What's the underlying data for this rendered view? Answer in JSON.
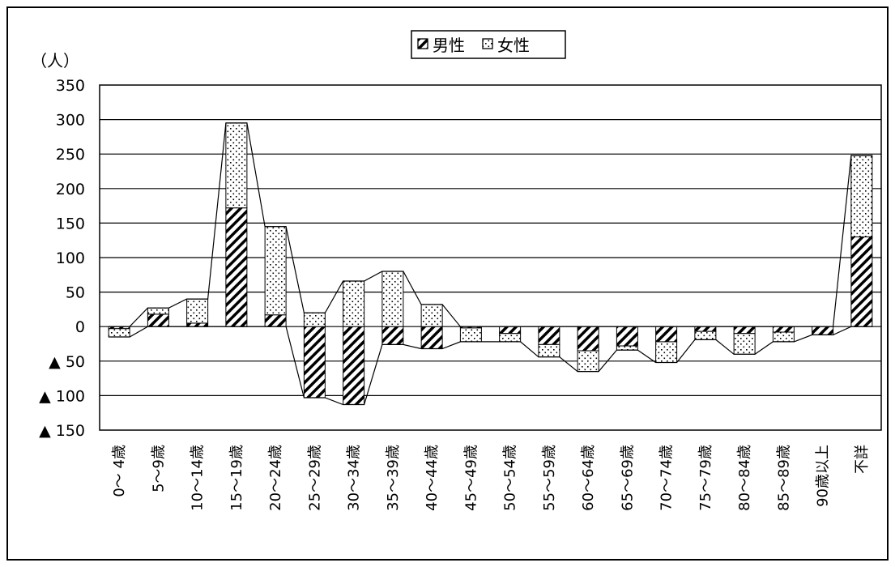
{
  "chart_data": {
    "type": "bar",
    "stacking": "stacked",
    "categories": [
      "0～ 4歳",
      "5～9歳",
      "10～14歳",
      "15～19歳",
      "20～24歳",
      "25～29歳",
      "30～34歳",
      "35～39歳",
      "40～44歳",
      "45～49歳",
      "50～54歳",
      "55～59歳",
      "60～64歳",
      "65～69歳",
      "70～74歳",
      "75～79歳",
      "80～84歳",
      "85～89歳",
      "90歳以上",
      "不詳"
    ],
    "unit_label": "（人）",
    "ylim": [
      -150,
      350
    ],
    "yticks": [
      350,
      300,
      250,
      200,
      150,
      100,
      50,
      0,
      -50,
      -100,
      -150
    ],
    "ytick_labels": [
      "350",
      "300",
      "250",
      "200",
      "150",
      "100",
      "50",
      "0",
      "▲ 50",
      "▲ 100",
      "▲ 150"
    ],
    "grid": true,
    "legend_position": "top-center",
    "series": [
      {
        "name": "男性",
        "values": [
          -3,
          18,
          5,
          172,
          17,
          -103,
          -113,
          -26,
          -32,
          -2,
          -10,
          -26,
          -35,
          -28,
          -22,
          -7,
          -10,
          -8,
          -12,
          130
        ]
      },
      {
        "name": "女性",
        "values": [
          -12,
          9,
          35,
          123,
          128,
          20,
          66,
          80,
          32,
          -20,
          -12,
          -18,
          -30,
          -6,
          -30,
          -12,
          -30,
          -14,
          0,
          118
        ]
      }
    ],
    "legend_labels": [
      "男性",
      "女性"
    ]
  }
}
